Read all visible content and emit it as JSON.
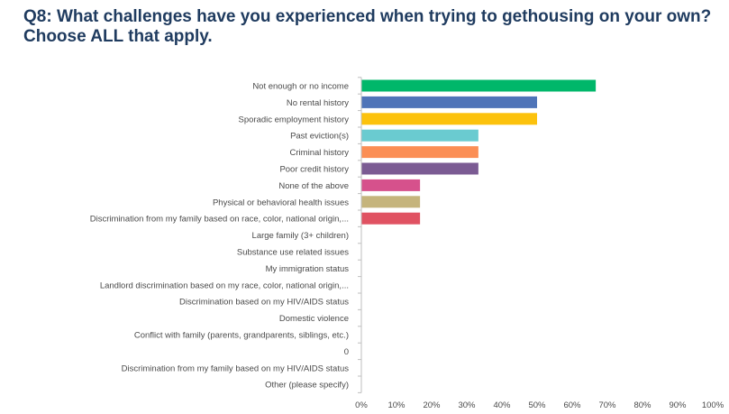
{
  "title": "Q8: What challenges have you experienced when trying to gethousing on your own? Choose ALL that apply.",
  "chart_data": {
    "type": "bar",
    "orientation": "horizontal",
    "categories": [
      "Not enough or no income",
      "No rental history",
      "Sporadic employment history",
      "Past eviction(s)",
      "Criminal history",
      "Poor credit history",
      "None of the above",
      "Physical or behavioral health issues",
      "Discrimination from my family based on race, color, national origin,...",
      "Large family (3+ children)",
      "Substance use related issues",
      "My immigration status",
      "Landlord discrimination based on my race, color, national origin,...",
      "Discrimination based on my HIV/AIDS status",
      "Domestic violence",
      "Conflict with family (parents, grandparents, siblings, etc.)",
      "0",
      "Discrimination from my family based on my HIV/AIDS status",
      "Other (please specify)"
    ],
    "values": [
      66.7,
      50,
      50,
      33.3,
      33.3,
      33.3,
      16.7,
      16.7,
      16.7,
      0,
      0,
      0,
      0,
      0,
      0,
      0,
      0,
      0,
      0
    ],
    "colors": [
      "#00b76a",
      "#4f74b8",
      "#fcc20d",
      "#6acbd0",
      "#fb8e55",
      "#7b5b93",
      "#d6518c",
      "#c5b47c",
      "#e05262",
      "#cccccc",
      "#cccccc",
      "#cccccc",
      "#cccccc",
      "#cccccc",
      "#cccccc",
      "#cccccc",
      "#cccccc",
      "#cccccc",
      "#cccccc"
    ],
    "xlim": [
      0,
      100
    ],
    "x_ticks": [
      "0%",
      "10%",
      "20%",
      "30%",
      "40%",
      "50%",
      "60%",
      "70%",
      "80%",
      "90%",
      "100%"
    ],
    "grid": false,
    "legend": "none"
  }
}
